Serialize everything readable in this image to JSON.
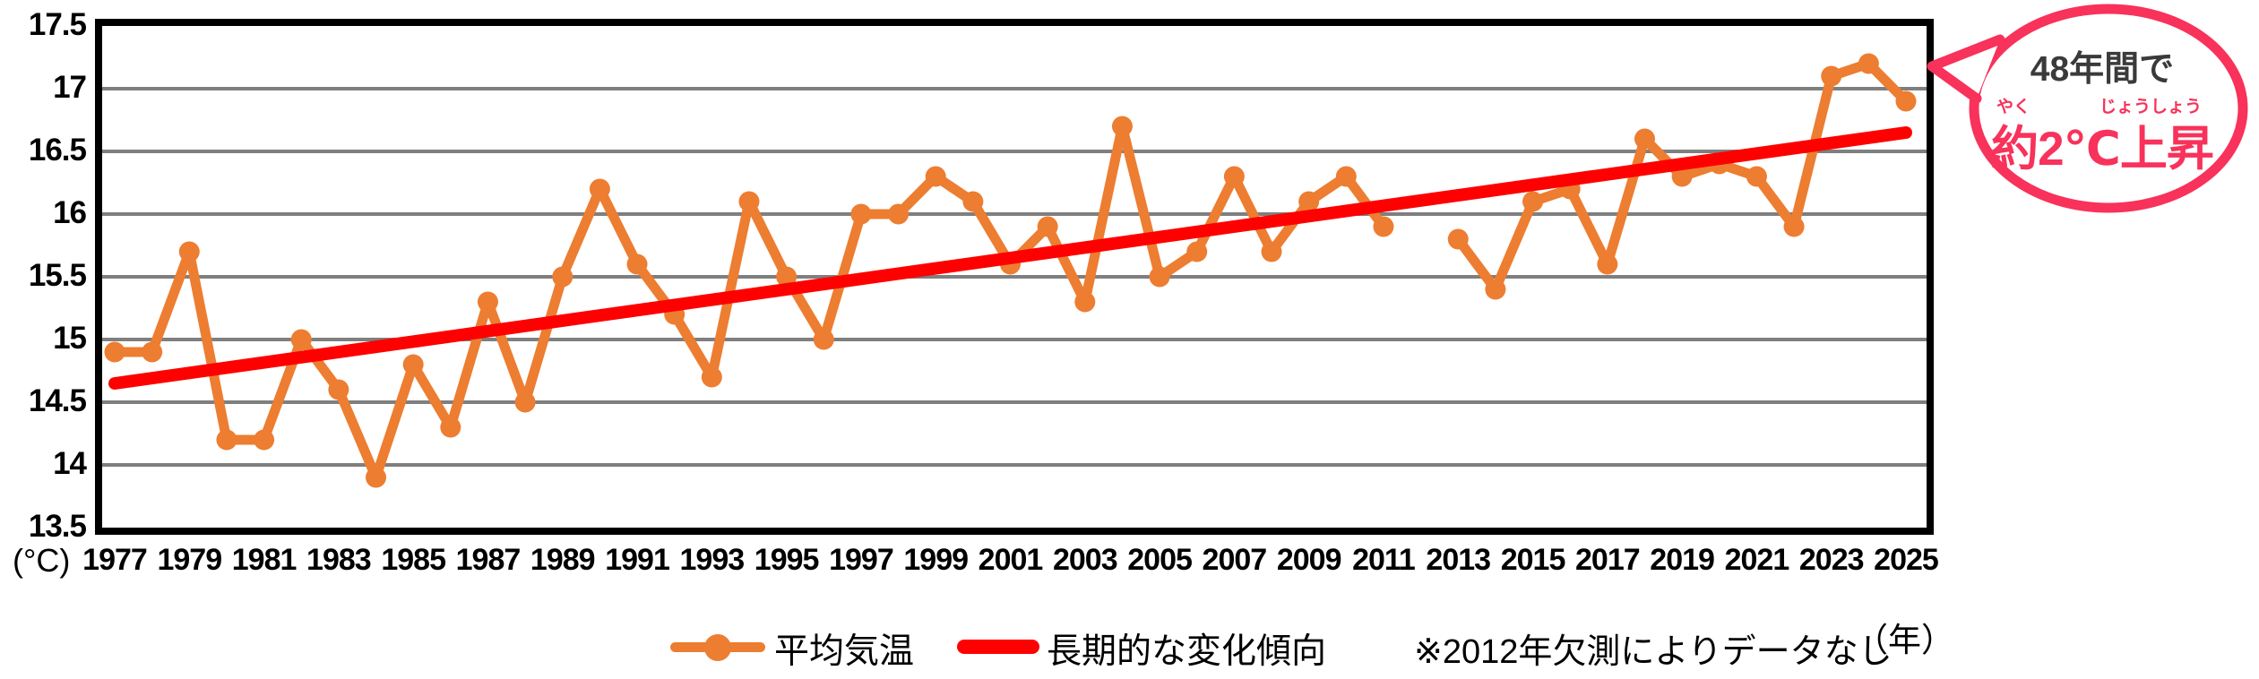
{
  "chart_data": {
    "type": "line",
    "y_unit_label": "(°C)",
    "x_unit_label": "（年）",
    "ylim": [
      13.5,
      17.5
    ],
    "y_ticks": [
      "17.5",
      "17",
      "16.5",
      "16",
      "15.5",
      "15",
      "14.5",
      "14",
      "13.5"
    ],
    "x_tick_years": [
      1977,
      1979,
      1981,
      1983,
      1985,
      1987,
      1989,
      1991,
      1993,
      1995,
      1997,
      1999,
      2001,
      2003,
      2005,
      2007,
      2009,
      2011,
      2013,
      2015,
      2017,
      2019,
      2021,
      2023,
      2025
    ],
    "years": [
      1977,
      1978,
      1979,
      1980,
      1981,
      1982,
      1983,
      1984,
      1985,
      1986,
      1987,
      1988,
      1989,
      1990,
      1991,
      1992,
      1993,
      1994,
      1995,
      1996,
      1997,
      1998,
      1999,
      2000,
      2001,
      2002,
      2003,
      2004,
      2005,
      2006,
      2007,
      2008,
      2009,
      2010,
      2011,
      2012,
      2013,
      2014,
      2015,
      2016,
      2017,
      2018,
      2019,
      2020,
      2021,
      2022,
      2023,
      2024,
      2025
    ],
    "series": [
      {
        "name": "平均気温",
        "color": "#ED7D31",
        "values": [
          14.9,
          14.9,
          15.7,
          14.2,
          14.2,
          15.0,
          14.6,
          13.9,
          14.8,
          14.3,
          15.3,
          14.5,
          15.5,
          16.2,
          15.6,
          15.2,
          14.7,
          16.1,
          15.5,
          15.0,
          16.0,
          16.0,
          16.3,
          16.1,
          15.6,
          15.9,
          15.3,
          16.7,
          15.5,
          15.7,
          16.3,
          15.7,
          16.1,
          16.3,
          15.9,
          null,
          15.8,
          15.4,
          16.1,
          16.2,
          15.6,
          16.6,
          16.3,
          16.4,
          16.3,
          15.9,
          17.1,
          17.2,
          16.9
        ]
      },
      {
        "name": "長期的な変化傾向",
        "color": "#FF0000",
        "start_value": 14.65,
        "end_value": 16.65
      }
    ],
    "note": "※2012年欠測によりデータなし",
    "grid_color": "#7F7F7F",
    "legend_position": "bottom"
  },
  "callout": {
    "line1": "48年間で",
    "furigana_line1": "やく",
    "furigana_line2": "じょうしょう",
    "line2": "約2℃上昇",
    "color": "#F8325A",
    "text_color_line1": "#3A3A3A"
  }
}
